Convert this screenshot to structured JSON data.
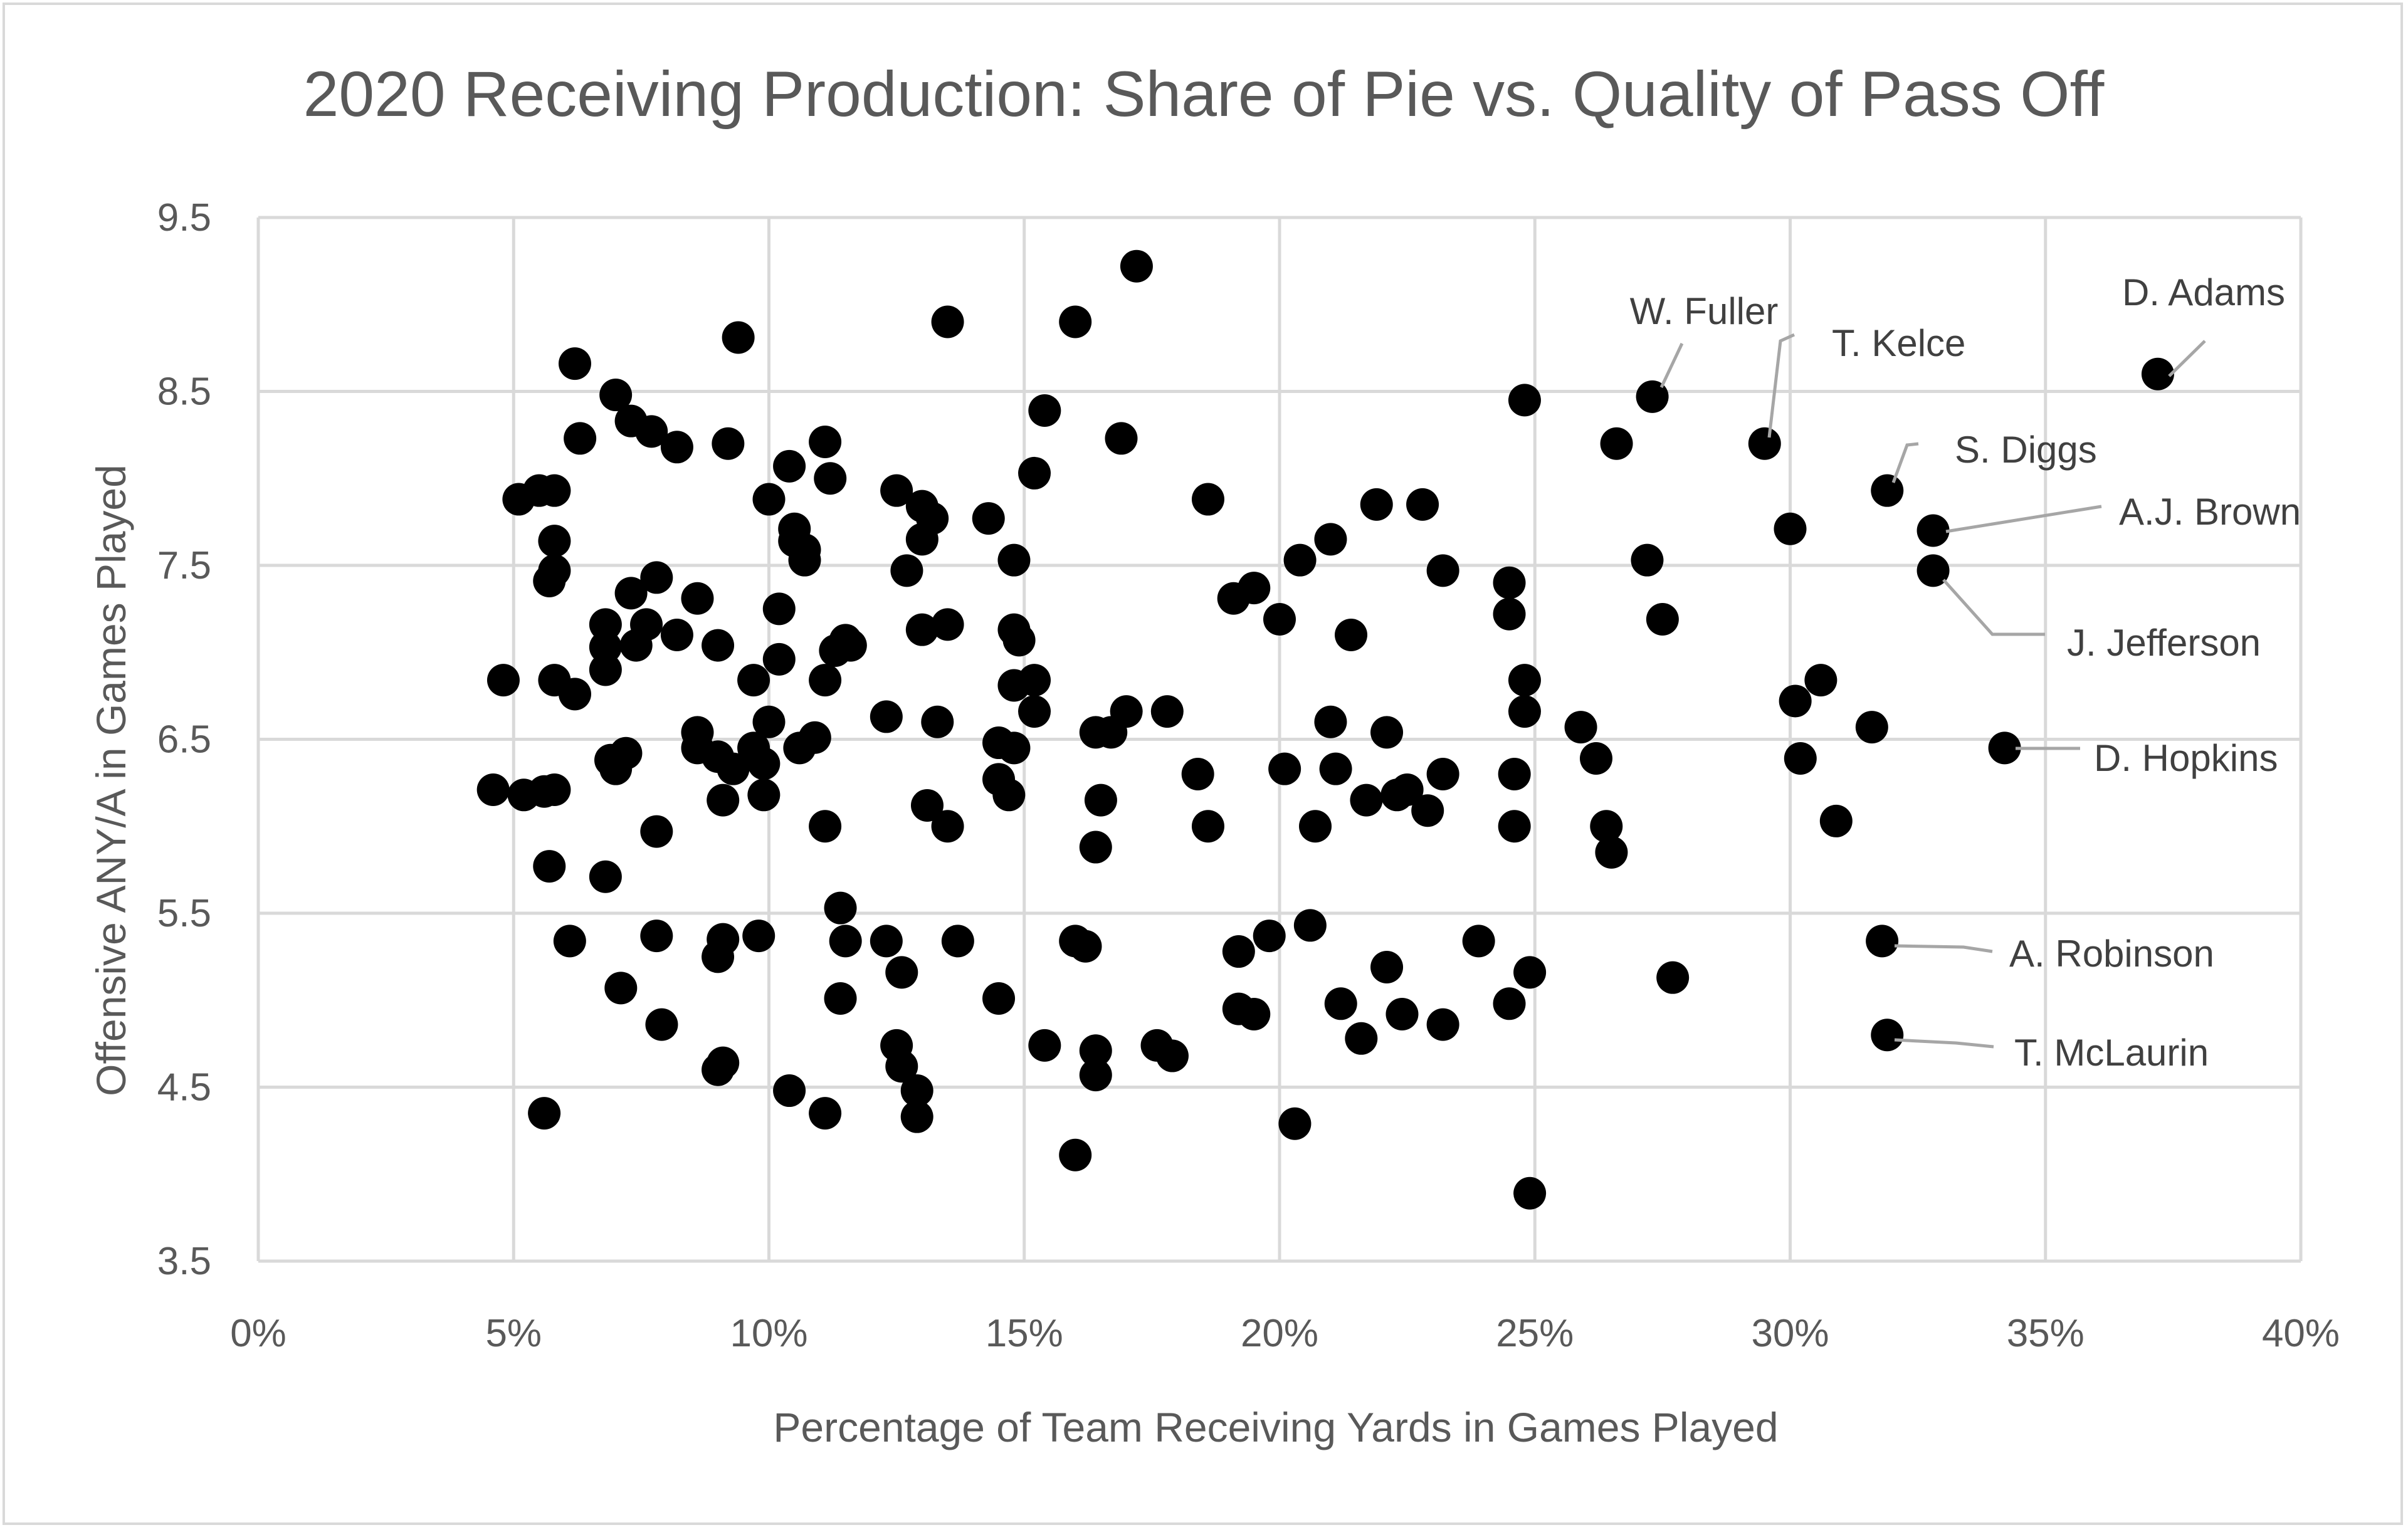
{
  "chart_data": {
    "type": "scatter",
    "title": "2020 Receiving Production: Share of Pie vs. Quality of Pass Off",
    "xlabel": "Percentage of Team Receiving Yards in Games Played",
    "ylabel": "Offensive ANY/A in Games Played",
    "xlim": [
      0,
      40
    ],
    "ylim": [
      3.5,
      9.5
    ],
    "x_ticks": [
      0,
      5,
      10,
      15,
      20,
      25,
      30,
      35,
      40
    ],
    "x_tick_labels": [
      "0%",
      "5%",
      "10%",
      "15%",
      "20%",
      "25%",
      "30%",
      "35%",
      "40%"
    ],
    "y_ticks": [
      3.5,
      4.5,
      5.5,
      6.5,
      7.5,
      8.5,
      9.5
    ],
    "y_tick_labels": [
      "3.5",
      "4.5",
      "5.5",
      "6.5",
      "7.5",
      "8.5",
      "9.5"
    ],
    "grid": true,
    "marker_color": "#000000",
    "annotations": [
      {
        "label": "D. Adams",
        "x": 37.2,
        "y": 8.6
      },
      {
        "label": "W. Fuller",
        "x": 27.3,
        "y": 8.47
      },
      {
        "label": "T. Kelce",
        "x": 29.5,
        "y": 8.2
      },
      {
        "label": "S. Diggs",
        "x": 31.9,
        "y": 7.93
      },
      {
        "label": "A.J. Brown",
        "x": 32.8,
        "y": 7.7
      },
      {
        "label": "J. Jefferson",
        "x": 32.8,
        "y": 7.47
      },
      {
        "label": "D. Hopkins",
        "x": 34.2,
        "y": 6.45
      },
      {
        "label": "A. Robinson",
        "x": 31.8,
        "y": 5.34
      },
      {
        "label": "T. McLaurin",
        "x": 31.9,
        "y": 4.8
      }
    ],
    "points": [
      [
        4.6,
        6.21
      ],
      [
        4.8,
        6.84
      ],
      [
        5.1,
        7.88
      ],
      [
        5.2,
        6.18
      ],
      [
        5.5,
        7.93
      ],
      [
        5.6,
        4.35
      ],
      [
        5.6,
        6.2
      ],
      [
        5.7,
        5.77
      ],
      [
        5.7,
        7.41
      ],
      [
        5.8,
        6.21
      ],
      [
        5.8,
        7.47
      ],
      [
        5.8,
        7.64
      ],
      [
        5.8,
        6.84
      ],
      [
        5.8,
        7.93
      ],
      [
        6.1,
        5.34
      ],
      [
        6.2,
        8.66
      ],
      [
        6.2,
        6.76
      ],
      [
        6.3,
        8.23
      ],
      [
        6.8,
        7.16
      ],
      [
        6.8,
        7.03
      ],
      [
        6.8,
        6.9
      ],
      [
        6.8,
        5.71
      ],
      [
        6.9,
        6.38
      ],
      [
        7.0,
        8.48
      ],
      [
        7.0,
        6.33
      ],
      [
        7.1,
        5.07
      ],
      [
        7.2,
        6.42
      ],
      [
        7.3,
        7.34
      ],
      [
        7.3,
        8.33
      ],
      [
        7.4,
        7.04
      ],
      [
        7.6,
        7.16
      ],
      [
        7.7,
        8.27
      ],
      [
        7.8,
        7.43
      ],
      [
        7.8,
        5.97
      ],
      [
        7.8,
        5.37
      ],
      [
        7.9,
        4.86
      ],
      [
        8.2,
        7.1
      ],
      [
        8.2,
        8.18
      ],
      [
        8.6,
        6.54
      ],
      [
        8.6,
        6.45
      ],
      [
        8.6,
        7.31
      ],
      [
        9.0,
        7.04
      ],
      [
        9.0,
        6.4
      ],
      [
        9.0,
        4.6
      ],
      [
        9.0,
        5.25
      ],
      [
        9.1,
        5.35
      ],
      [
        9.1,
        4.64
      ],
      [
        9.1,
        6.15
      ],
      [
        9.2,
        8.2
      ],
      [
        9.3,
        6.33
      ],
      [
        9.4,
        8.81
      ],
      [
        9.7,
        6.84
      ],
      [
        9.7,
        6.45
      ],
      [
        9.8,
        5.37
      ],
      [
        9.9,
        6.18
      ],
      [
        9.9,
        6.36
      ],
      [
        10.0,
        6.6
      ],
      [
        10.0,
        7.88
      ],
      [
        10.2,
        6.96
      ],
      [
        10.2,
        7.25
      ],
      [
        10.4,
        8.07
      ],
      [
        10.4,
        4.48
      ],
      [
        10.5,
        7.64
      ],
      [
        10.5,
        7.71
      ],
      [
        10.6,
        6.45
      ],
      [
        10.7,
        7.59
      ],
      [
        10.7,
        7.53
      ],
      [
        10.9,
        6.51
      ],
      [
        11.1,
        8.21
      ],
      [
        11.1,
        6.84
      ],
      [
        11.1,
        6.0
      ],
      [
        11.1,
        4.35
      ],
      [
        11.2,
        8.0
      ],
      [
        11.3,
        7.01
      ],
      [
        11.4,
        5.53
      ],
      [
        11.4,
        5.01
      ],
      [
        11.5,
        5.34
      ],
      [
        11.5,
        7.07
      ],
      [
        11.6,
        7.04
      ],
      [
        12.3,
        6.63
      ],
      [
        12.3,
        5.34
      ],
      [
        12.5,
        7.93
      ],
      [
        12.5,
        4.74
      ],
      [
        12.6,
        5.16
      ],
      [
        12.6,
        4.62
      ],
      [
        12.7,
        7.47
      ],
      [
        12.9,
        4.48
      ],
      [
        12.9,
        4.33
      ],
      [
        13.0,
        7.84
      ],
      [
        13.0,
        7.65
      ],
      [
        13.0,
        7.13
      ],
      [
        13.1,
        6.12
      ],
      [
        13.2,
        7.77
      ],
      [
        13.3,
        6.6
      ],
      [
        13.5,
        8.9
      ],
      [
        13.5,
        7.16
      ],
      [
        13.5,
        6.0
      ],
      [
        13.7,
        5.34
      ],
      [
        14.3,
        7.77
      ],
      [
        14.5,
        6.48
      ],
      [
        14.5,
        6.27
      ],
      [
        14.5,
        5.01
      ],
      [
        14.7,
        6.18
      ],
      [
        14.8,
        6.45
      ],
      [
        14.8,
        7.13
      ],
      [
        14.8,
        6.81
      ],
      [
        14.8,
        7.53
      ],
      [
        14.9,
        7.07
      ],
      [
        15.2,
        6.84
      ],
      [
        15.2,
        6.66
      ],
      [
        15.2,
        8.03
      ],
      [
        15.4,
        8.39
      ],
      [
        15.4,
        4.74
      ],
      [
        16.0,
        8.9
      ],
      [
        16.0,
        5.34
      ],
      [
        16.0,
        4.11
      ],
      [
        16.2,
        5.31
      ],
      [
        16.4,
        6.54
      ],
      [
        16.4,
        5.88
      ],
      [
        16.4,
        4.71
      ],
      [
        16.4,
        4.57
      ],
      [
        16.5,
        6.15
      ],
      [
        16.7,
        6.54
      ],
      [
        16.9,
        8.23
      ],
      [
        17.0,
        6.66
      ],
      [
        17.2,
        9.22
      ],
      [
        17.6,
        4.74
      ],
      [
        17.8,
        6.66
      ],
      [
        17.9,
        4.68
      ],
      [
        18.4,
        6.3
      ],
      [
        18.6,
        7.88
      ],
      [
        18.6,
        6.0
      ],
      [
        19.1,
        7.31
      ],
      [
        19.2,
        5.28
      ],
      [
        19.2,
        4.95
      ],
      [
        19.5,
        7.37
      ],
      [
        19.5,
        4.92
      ],
      [
        19.8,
        5.37
      ],
      [
        20.0,
        7.19
      ],
      [
        20.1,
        6.33
      ],
      [
        20.3,
        4.29
      ],
      [
        20.4,
        7.53
      ],
      [
        20.6,
        5.43
      ],
      [
        20.7,
        6.0
      ],
      [
        21.0,
        7.65
      ],
      [
        21.0,
        6.6
      ],
      [
        21.1,
        6.33
      ],
      [
        21.2,
        4.98
      ],
      [
        21.4,
        7.1
      ],
      [
        21.6,
        4.78
      ],
      [
        21.7,
        6.15
      ],
      [
        21.9,
        7.85
      ],
      [
        22.1,
        5.19
      ],
      [
        22.1,
        6.54
      ],
      [
        22.3,
        6.18
      ],
      [
        22.4,
        4.92
      ],
      [
        22.5,
        6.21
      ],
      [
        22.8,
        7.85
      ],
      [
        22.9,
        6.09
      ],
      [
        23.2,
        7.47
      ],
      [
        23.2,
        6.3
      ],
      [
        23.2,
        4.86
      ],
      [
        23.9,
        5.34
      ],
      [
        24.5,
        7.4
      ],
      [
        24.5,
        7.22
      ],
      [
        24.5,
        4.98
      ],
      [
        24.6,
        6.3
      ],
      [
        24.6,
        6.0
      ],
      [
        24.8,
        8.45
      ],
      [
        24.8,
        6.84
      ],
      [
        24.8,
        6.66
      ],
      [
        24.9,
        5.16
      ],
      [
        24.9,
        3.89
      ],
      [
        25.9,
        6.57
      ],
      [
        26.2,
        6.39
      ],
      [
        26.4,
        6.0
      ],
      [
        26.5,
        5.85
      ],
      [
        26.6,
        8.2
      ],
      [
        27.2,
        7.53
      ],
      [
        27.3,
        8.47
      ],
      [
        27.5,
        7.19
      ],
      [
        27.7,
        5.13
      ],
      [
        29.5,
        8.2
      ],
      [
        30.0,
        7.71
      ],
      [
        30.1,
        6.72
      ],
      [
        30.2,
        6.39
      ],
      [
        30.6,
        6.84
      ],
      [
        30.9,
        6.03
      ],
      [
        31.6,
        6.57
      ],
      [
        31.8,
        5.34
      ],
      [
        31.9,
        4.8
      ],
      [
        31.9,
        7.93
      ],
      [
        32.8,
        7.7
      ],
      [
        32.8,
        7.47
      ],
      [
        34.2,
        6.45
      ],
      [
        37.2,
        8.6
      ]
    ]
  }
}
